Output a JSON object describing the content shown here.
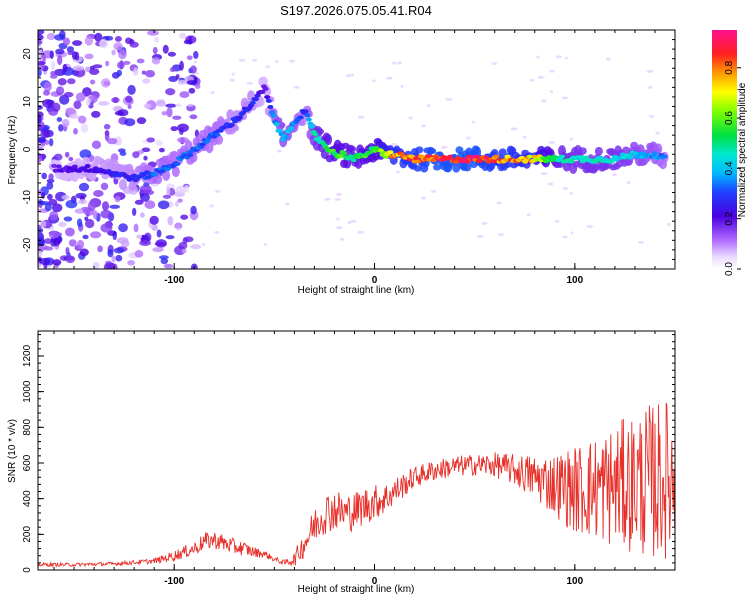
{
  "figure_title": "S197.2026.075.05.41.R04",
  "chart_data": [
    {
      "type": "heatmap",
      "title": "S197.2026.075.05.41.R04",
      "xlabel": "Height of straight line (km)",
      "ylabel": "Frequency (Hz)",
      "xlim": [
        -168,
        150
      ],
      "ylim": [
        -25,
        25
      ],
      "xticks": [
        -100,
        0,
        100
      ],
      "xtick_labels": [
        "-100",
        "0",
        "100"
      ],
      "yticks": [
        20,
        10,
        0,
        -10,
        -20
      ],
      "ytick_labels": [
        "20",
        "10",
        "0",
        "-10",
        "-20"
      ],
      "colorbar": {
        "label": "Normalized spectral amplitude",
        "range": [
          0,
          0.95
        ],
        "ticks": [
          0.0,
          0.2,
          0.4,
          0.6,
          0.8
        ],
        "tick_labels": [
          "0.0",
          "0.2",
          "0.4",
          "0.6",
          "0.8"
        ]
      },
      "ridge": {
        "description_x": "Height of straight line (km)",
        "x": [
          -160,
          -140,
          -120,
          -110,
          -100,
          -90,
          -80,
          -70,
          -60,
          -55,
          -50,
          -45,
          -40,
          -35,
          -30,
          -25,
          -20,
          -15,
          -10,
          -5,
          0,
          5,
          10,
          20,
          30,
          40,
          50,
          60,
          70,
          80,
          90,
          100,
          110,
          120,
          130,
          140,
          145
        ],
        "freq": [
          -4,
          -4,
          -6,
          -5,
          -3,
          0,
          3,
          6,
          10,
          13,
          6,
          2,
          6,
          8,
          3,
          1,
          -1,
          -1,
          -2,
          -1,
          0,
          -1,
          -1,
          -2,
          -2,
          -2,
          -2,
          -2,
          -2,
          -2,
          -2,
          -2,
          -2,
          -2,
          -1,
          -1,
          -2
        ],
        "amplitude": [
          0.2,
          0.25,
          0.3,
          0.35,
          0.35,
          0.35,
          0.35,
          0.3,
          0.3,
          0.2,
          0.4,
          0.45,
          0.4,
          0.3,
          0.5,
          0.55,
          0.6,
          0.6,
          0.55,
          0.6,
          0.6,
          0.75,
          0.85,
          0.9,
          0.95,
          0.95,
          0.95,
          0.9,
          0.85,
          0.8,
          0.55,
          0.5,
          0.5,
          0.5,
          0.45,
          0.4,
          0.35
        ]
      }
    },
    {
      "type": "line",
      "xlabel": "Height of straight line (km)",
      "ylabel": "SNR (10 * v/v)",
      "xlim": [
        -168,
        150
      ],
      "ylim": [
        0,
        1340
      ],
      "xticks": [
        -100,
        0,
        100
      ],
      "xtick_labels": [
        "-100",
        "0",
        "100"
      ],
      "yticks": [
        0,
        200,
        400,
        600,
        800,
        1000,
        1200
      ],
      "ytick_labels": [
        "0",
        "200",
        "400",
        "600",
        "800",
        "1000",
        "1200"
      ],
      "series": [
        {
          "name": "SNR",
          "color": "#e8302a",
          "x": [
            -168,
            -150,
            -130,
            -110,
            -100,
            -90,
            -85,
            -80,
            -75,
            -70,
            -65,
            -60,
            -55,
            -50,
            -45,
            -40,
            -35,
            -30,
            -25,
            -20,
            -15,
            -10,
            -5,
            0,
            5,
            10,
            15,
            20,
            25,
            30,
            40,
            50,
            60,
            70,
            80,
            90,
            100,
            110,
            120,
            130,
            140,
            150
          ],
          "y": [
            30,
            30,
            35,
            50,
            80,
            120,
            160,
            170,
            150,
            130,
            120,
            100,
            90,
            60,
            40,
            60,
            150,
            250,
            320,
            340,
            320,
            330,
            360,
            380,
            400,
            440,
            480,
            520,
            540,
            560,
            580,
            590,
            590,
            560,
            520,
            480,
            450,
            460,
            470,
            490,
            500,
            520
          ],
          "spread": [
            10,
            10,
            10,
            15,
            30,
            40,
            50,
            50,
            50,
            45,
            40,
            30,
            20,
            15,
            15,
            40,
            80,
            100,
            120,
            120,
            110,
            110,
            110,
            100,
            90,
            80,
            70,
            60,
            60,
            60,
            60,
            60,
            70,
            90,
            130,
            180,
            250,
            300,
            350,
            400,
            450,
            450
          ]
        }
      ]
    }
  ]
}
